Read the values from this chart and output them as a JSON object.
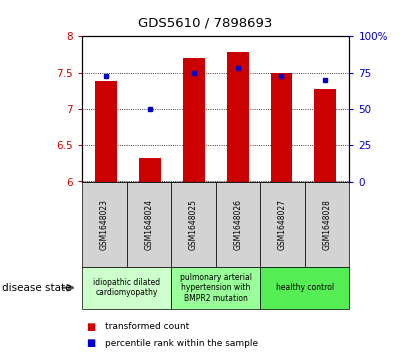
{
  "title": "GDS5610 / 7898693",
  "samples": [
    "GSM1648023",
    "GSM1648024",
    "GSM1648025",
    "GSM1648026",
    "GSM1648027",
    "GSM1648028"
  ],
  "transformed_count": [
    7.38,
    6.33,
    7.7,
    7.78,
    7.5,
    7.28
  ],
  "percentile_rank": [
    73,
    50,
    75,
    78,
    73,
    70
  ],
  "ymin": 6.0,
  "ymax": 8.0,
  "yright_min": 0,
  "yright_max": 100,
  "yticks_left": [
    6.0,
    6.5,
    7.0,
    7.5,
    8.0
  ],
  "yticks_right": [
    0,
    25,
    50,
    75,
    100
  ],
  "ytick_labels_left": [
    "6",
    "6.5",
    "7",
    "7.5",
    "8"
  ],
  "ytick_labels_right": [
    "0",
    "25",
    "50",
    "75",
    "100%"
  ],
  "bar_color": "#cc0000",
  "dot_color": "#0000cc",
  "bar_width": 0.5,
  "disease_groups": [
    {
      "label": "idiopathic dilated\ncardiomyopathy",
      "samples": [
        0,
        1
      ],
      "color": "#ccffcc"
    },
    {
      "label": "pulmonary arterial\nhypertension with\nBMPR2 mutation",
      "samples": [
        2,
        3
      ],
      "color": "#99ff99"
    },
    {
      "label": "healthy control",
      "samples": [
        4,
        5
      ],
      "color": "#55ee55"
    }
  ],
  "legend_red_label": "transformed count",
  "legend_blue_label": "percentile rank within the sample",
  "disease_state_label": "disease state",
  "background_color": "#ffffff",
  "tick_label_color_left": "#cc0000",
  "tick_label_color_right": "#0000cc"
}
